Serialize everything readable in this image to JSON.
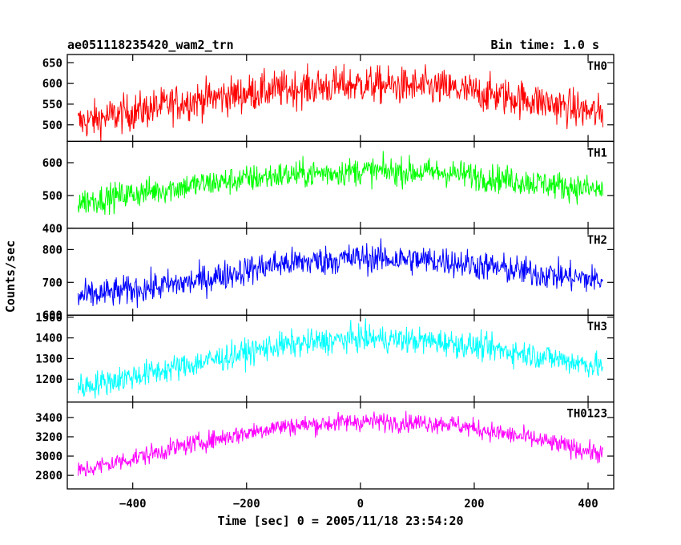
{
  "chart_data": {
    "type": "line",
    "title": "ae051118235420_wam2_trn",
    "subtitle": "Bin time: 1.0 s",
    "xlabel": "Time [sec] 0 = 2005/11/18 23:54:20",
    "ylabel": "Counts/sec",
    "xlim": [
      -515,
      445
    ],
    "x_ticks": [
      -400,
      -200,
      0,
      200,
      400
    ],
    "x_range": [
      -496,
      426
    ],
    "bin_time": 1.0,
    "grid": false,
    "panels": [
      {
        "name": "TH0",
        "color": "#ff0000",
        "ylim": [
          460,
          670
        ],
        "y_ticks": [
          500,
          550,
          600,
          650
        ],
        "profile": {
          "-496": 505,
          "-300": 558,
          "-150": 585,
          "0": 598,
          "150": 588,
          "300": 560,
          "426": 525
        },
        "noise": 32
      },
      {
        "name": "TH1",
        "color": "#00ff00",
        "ylim": [
          400,
          665
        ],
        "y_ticks": [
          400,
          500,
          600
        ],
        "profile": {
          "-496": 480,
          "-300": 530,
          "-150": 560,
          "0": 575,
          "150": 570,
          "300": 540,
          "426": 515
        },
        "noise": 30
      },
      {
        "name": "TH2",
        "color": "#0000ff",
        "ylim": [
          600,
          865
        ],
        "y_ticks": [
          600,
          700,
          800
        ],
        "profile": {
          "-496": 655,
          "-300": 700,
          "-150": 755,
          "0": 775,
          "150": 765,
          "300": 730,
          "426": 705
        },
        "noise": 32
      },
      {
        "name": "TH3",
        "color": "#00ffff",
        "ylim": [
          1090,
          1510
        ],
        "y_ticks": [
          1200,
          1300,
          1400,
          1500
        ],
        "profile": {
          "-496": 1160,
          "-300": 1270,
          "-150": 1360,
          "0": 1400,
          "150": 1380,
          "300": 1320,
          "426": 1260
        },
        "noise": 45
      },
      {
        "name": "TH0123",
        "color": "#ff00ff",
        "ylim": [
          2660,
          3560
        ],
        "y_ticks": [
          2800,
          3000,
          3200,
          3400
        ],
        "profile": {
          "-496": 2840,
          "-300": 3120,
          "-150": 3300,
          "0": 3360,
          "150": 3340,
          "300": 3180,
          "426": 3020
        },
        "noise": 70
      }
    ]
  }
}
